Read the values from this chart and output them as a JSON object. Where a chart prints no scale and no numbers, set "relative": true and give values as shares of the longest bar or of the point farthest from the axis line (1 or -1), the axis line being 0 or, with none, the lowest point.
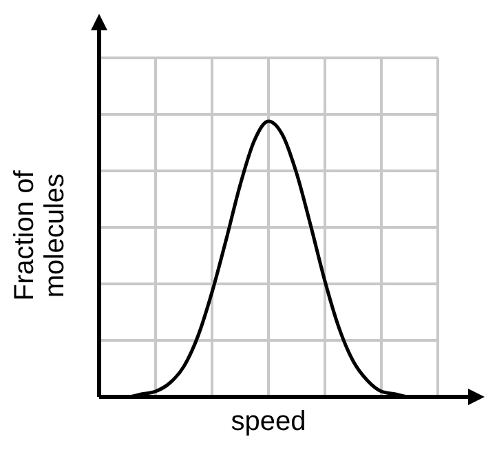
{
  "chart_data": {
    "type": "line",
    "relative": true,
    "xlabel": "speed",
    "ylabel": "Fraction of molecules",
    "grid": true,
    "marker": "none",
    "line_style": "solid",
    "categories": [
      null,
      null,
      null,
      null,
      null,
      null,
      null,
      null,
      null,
      null,
      null,
      null,
      null,
      null,
      null,
      null,
      null,
      null,
      null,
      null,
      null,
      null,
      null,
      null,
      null
    ],
    "series": [
      {
        "color": "#000000",
        "values": [
          0,
          0,
          0,
          0.01,
          0.02,
          0.05,
          0.11,
          0.22,
          0.38,
          0.57,
          0.77,
          0.93,
          1,
          0.95,
          0.81,
          0.62,
          0.42,
          0.25,
          0.13,
          0.06,
          0.02,
          0.01,
          0,
          0,
          0
        ]
      }
    ]
  }
}
